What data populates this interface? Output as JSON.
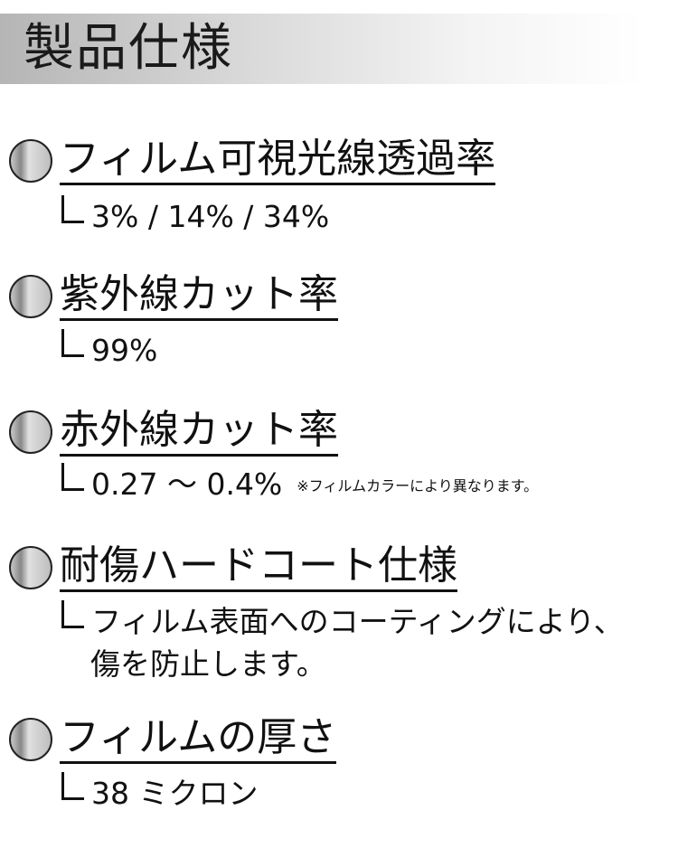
{
  "header": {
    "title": "製品仕様"
  },
  "sections": [
    {
      "heading": "フィルム可視光線透過率",
      "value": "3% / 14% / 34%"
    },
    {
      "heading": "紫外線カット率",
      "value": "99%"
    },
    {
      "heading": "赤外線カット率",
      "value": "0.27 ～ 0.4%",
      "note": "※フィルムカラーにより異なります。"
    },
    {
      "heading": "耐傷ハードコート仕様",
      "value": "フィルム表面へのコーティングにより、",
      "value_line2": "傷を防止します。"
    },
    {
      "heading": "フィルムの厚さ",
      "value": "38 ミクロン"
    }
  ]
}
